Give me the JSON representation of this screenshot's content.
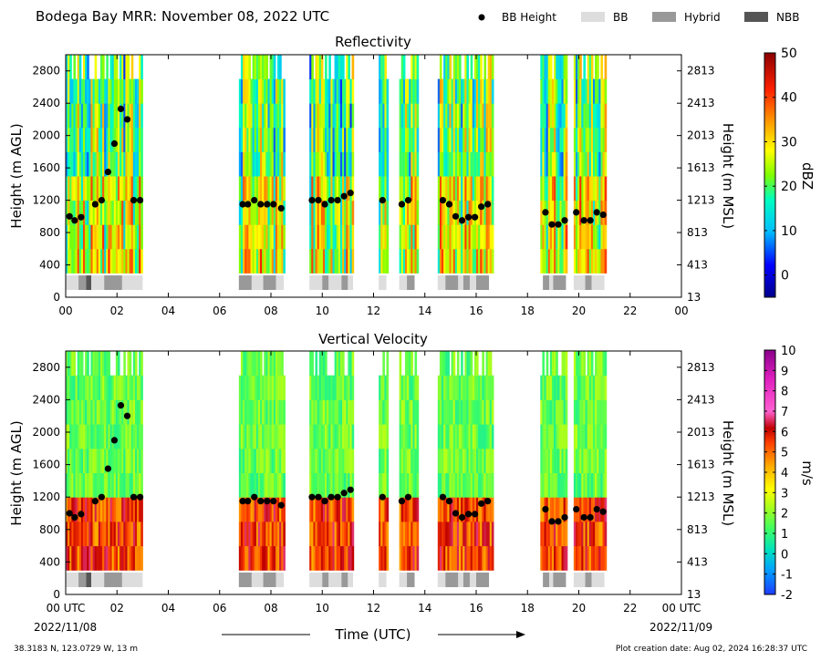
{
  "header": {
    "title": "Bodega Bay MRR:  November 08, 2022 UTC",
    "legend": [
      {
        "label": "BB Height",
        "kind": "dot",
        "color": "#000000"
      },
      {
        "label": "BB",
        "kind": "box",
        "color": "#dddddd"
      },
      {
        "label": "Hybrid",
        "kind": "box",
        "color": "#999999"
      },
      {
        "label": "NBB",
        "kind": "box",
        "color": "#555555"
      }
    ]
  },
  "footer": {
    "location": "38.3183 N, 123.0729 W, 13 m",
    "creation": "Plot creation date: Aug 02, 2024 16:28:37 UTC",
    "xaxis_title": "Time (UTC)",
    "start_date": "2022/11/08",
    "end_date": "2022/11/09"
  },
  "chart_data": [
    {
      "type": "heatmap",
      "title": "Reflectivity",
      "ylabel": "Height (m AGL)",
      "ylabel_right": "Height (m MSL)",
      "xlim": [
        0,
        24
      ],
      "ylim": [
        0,
        3000
      ],
      "x_ticks": [
        "00",
        "02",
        "04",
        "06",
        "08",
        "10",
        "12",
        "14",
        "16",
        "18",
        "20",
        "22",
        "00"
      ],
      "y_ticks": [
        0,
        400,
        800,
        1200,
        1600,
        2000,
        2400,
        2800
      ],
      "y_ticks_right": [
        "13",
        "413",
        "813",
        "1213",
        "1613",
        "2013",
        "2413",
        "2813"
      ],
      "colorbar": {
        "label": "dBZ",
        "min": -5,
        "max": 50,
        "ticks": [
          0,
          10,
          20,
          30,
          40,
          50
        ]
      },
      "grid": false
    },
    {
      "type": "heatmap",
      "title": "Vertical Velocity",
      "ylabel": "Height (m AGL)",
      "ylabel_right": "Height (m MSL)",
      "xlim": [
        0,
        24
      ],
      "ylim": [
        0,
        3000
      ],
      "x_ticks": [
        "00 UTC",
        "02",
        "04",
        "06",
        "08",
        "10",
        "12",
        "14",
        "16",
        "18",
        "20",
        "22",
        "00 UTC"
      ],
      "y_ticks": [
        0,
        400,
        800,
        1200,
        1600,
        2000,
        2400,
        2800
      ],
      "y_ticks_right": [
        "13",
        "413",
        "813",
        "1213",
        "1613",
        "2013",
        "2413",
        "2813"
      ],
      "colorbar": {
        "label": "m/s",
        "min": -2,
        "max": 10,
        "ticks": [
          -2,
          -1,
          0,
          1,
          2,
          3,
          4,
          5,
          6,
          7,
          8,
          9,
          10
        ]
      },
      "grid": false
    }
  ],
  "data_segments": [
    [
      0.0,
      3.0
    ],
    [
      6.75,
      8.5
    ],
    [
      9.5,
      11.2
    ],
    [
      12.2,
      12.5
    ],
    [
      13.0,
      13.7
    ],
    [
      14.5,
      16.6
    ],
    [
      18.5,
      19.5
    ],
    [
      19.8,
      21.0
    ]
  ],
  "bb_heights": [
    [
      0.15,
      1000
    ],
    [
      0.35,
      950
    ],
    [
      0.6,
      990
    ],
    [
      1.15,
      1150
    ],
    [
      1.4,
      1200
    ],
    [
      1.65,
      1550
    ],
    [
      1.9,
      1900
    ],
    [
      2.15,
      2330
    ],
    [
      2.4,
      2200
    ],
    [
      2.65,
      1200
    ],
    [
      2.9,
      1200
    ],
    [
      6.9,
      1150
    ],
    [
      7.1,
      1150
    ],
    [
      7.35,
      1200
    ],
    [
      7.6,
      1150
    ],
    [
      7.85,
      1150
    ],
    [
      8.1,
      1150
    ],
    [
      8.4,
      1100
    ],
    [
      9.6,
      1200
    ],
    [
      9.85,
      1200
    ],
    [
      10.1,
      1150
    ],
    [
      10.35,
      1200
    ],
    [
      10.6,
      1200
    ],
    [
      10.85,
      1250
    ],
    [
      11.1,
      1290
    ],
    [
      12.35,
      1200
    ],
    [
      13.1,
      1150
    ],
    [
      13.35,
      1200
    ],
    [
      14.7,
      1200
    ],
    [
      14.95,
      1150
    ],
    [
      15.2,
      1000
    ],
    [
      15.45,
      950
    ],
    [
      15.7,
      990
    ],
    [
      15.95,
      990
    ],
    [
      16.2,
      1120
    ],
    [
      16.45,
      1150
    ],
    [
      18.7,
      1050
    ],
    [
      18.95,
      900
    ],
    [
      19.2,
      900
    ],
    [
      19.45,
      950
    ],
    [
      19.9,
      1050
    ],
    [
      20.2,
      950
    ],
    [
      20.45,
      950
    ],
    [
      20.7,
      1050
    ],
    [
      20.95,
      1020
    ]
  ],
  "type_bar": [
    [
      0.0,
      0.5,
      "BB"
    ],
    [
      0.5,
      0.8,
      "Hybrid"
    ],
    [
      0.8,
      1.0,
      "NBB"
    ],
    [
      1.0,
      1.5,
      "BB"
    ],
    [
      1.5,
      2.2,
      "Hybrid"
    ],
    [
      2.2,
      3.0,
      "BB"
    ],
    [
      6.75,
      7.25,
      "Hybrid"
    ],
    [
      7.25,
      7.7,
      "BB"
    ],
    [
      7.7,
      8.2,
      "Hybrid"
    ],
    [
      8.2,
      8.5,
      "BB"
    ],
    [
      9.5,
      10.0,
      "BB"
    ],
    [
      10.0,
      10.25,
      "Hybrid"
    ],
    [
      10.25,
      10.75,
      "BB"
    ],
    [
      10.75,
      11.0,
      "Hybrid"
    ],
    [
      11.0,
      11.2,
      "BB"
    ],
    [
      12.2,
      12.5,
      "BB"
    ],
    [
      13.0,
      13.3,
      "BB"
    ],
    [
      13.3,
      13.6,
      "Hybrid"
    ],
    [
      14.5,
      14.8,
      "BB"
    ],
    [
      14.8,
      15.3,
      "Hybrid"
    ],
    [
      15.3,
      15.5,
      "BB"
    ],
    [
      15.5,
      15.75,
      "Hybrid"
    ],
    [
      15.75,
      16.0,
      "BB"
    ],
    [
      16.0,
      16.5,
      "Hybrid"
    ],
    [
      18.6,
      18.85,
      "Hybrid"
    ],
    [
      18.85,
      19.0,
      "BB"
    ],
    [
      19.0,
      19.5,
      "Hybrid"
    ],
    [
      19.8,
      20.25,
      "BB"
    ],
    [
      20.25,
      20.5,
      "Hybrid"
    ],
    [
      20.5,
      21.0,
      "BB"
    ]
  ]
}
